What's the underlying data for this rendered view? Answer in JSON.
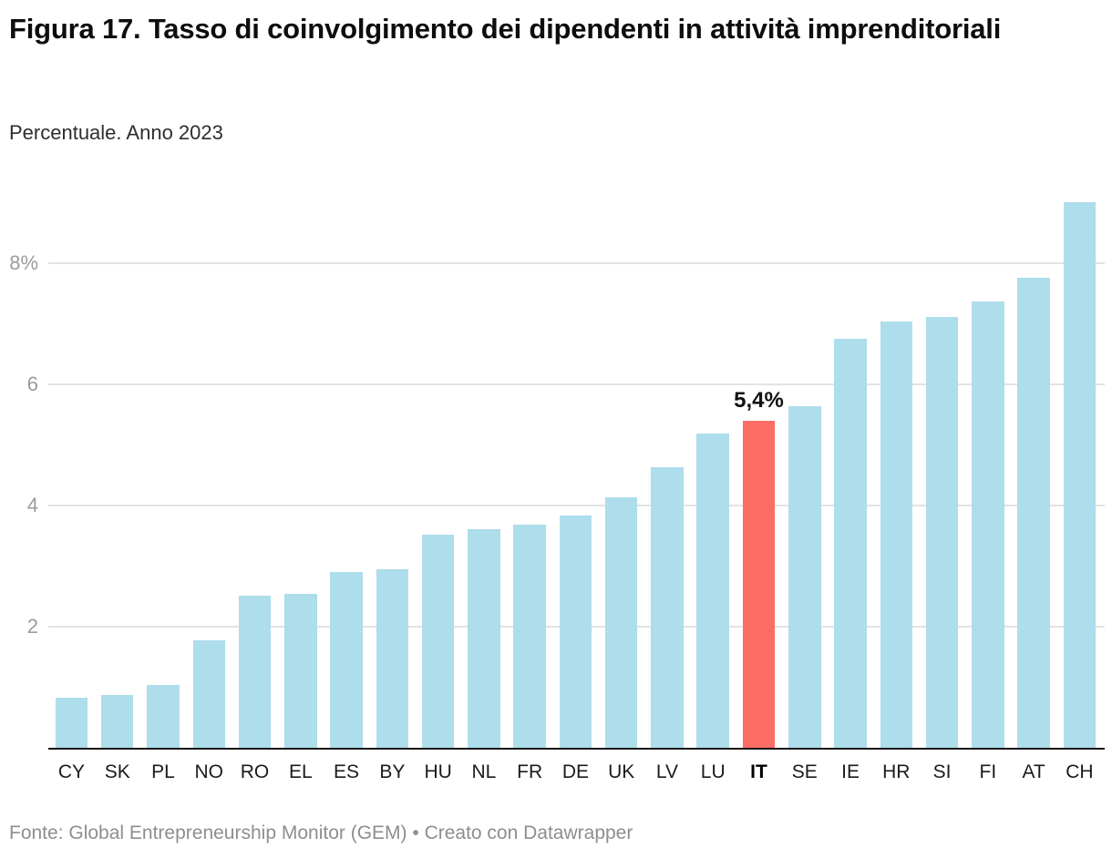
{
  "chart_data": {
    "type": "bar",
    "title": "Figura 17. Tasso di coinvolgimento dei dipendenti in attività imprenditoriali",
    "subtitle": "Percentuale. Anno 2023",
    "unit": "%",
    "categories": [
      "CY",
      "SK",
      "PL",
      "NO",
      "RO",
      "EL",
      "ES",
      "BY",
      "HU",
      "NL",
      "FR",
      "DE",
      "UK",
      "LV",
      "LU",
      "IT",
      "SE",
      "IE",
      "HR",
      "SI",
      "FI",
      "AT",
      "CH"
    ],
    "values": [
      0.83,
      0.87,
      1.04,
      1.77,
      2.52,
      2.55,
      2.91,
      2.95,
      3.52,
      3.61,
      3.68,
      3.83,
      4.14,
      4.64,
      5.19,
      5.4,
      5.64,
      6.75,
      7.05,
      7.12,
      7.37,
      7.76,
      9.01
    ],
    "highlight": {
      "category": "IT",
      "label": "5,4%"
    },
    "y_ticks": [
      {
        "value": 2,
        "label": "2"
      },
      {
        "value": 4,
        "label": "4"
      },
      {
        "value": 6,
        "label": "6"
      },
      {
        "value": 8,
        "label": "8%"
      }
    ],
    "ylim": [
      0,
      9.3
    ],
    "grid": true,
    "legend": "none",
    "xlabel": "",
    "ylabel": "",
    "colors": {
      "bar": "#aeddec",
      "highlight": "#fd6c64",
      "gridline": "#e3e3e3",
      "axis": "#141414",
      "tick_label": "#9b9b9b"
    }
  },
  "footer": {
    "source": "Fonte: Global Entrepreneurship Monitor (GEM)",
    "separator": " • ",
    "credit": "Creato con Datawrapper"
  }
}
